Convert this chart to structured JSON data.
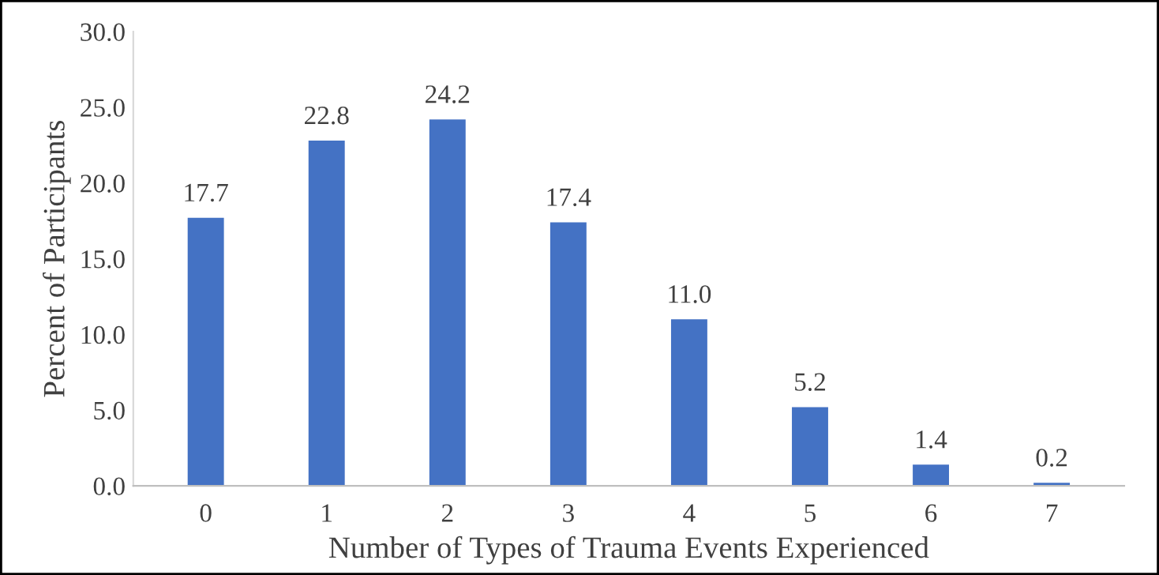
{
  "chart_data": {
    "type": "bar",
    "xlabel": "Number of Types of Trauma Events Experienced",
    "ylabel": "Percent of Participants",
    "categories": [
      "0",
      "1",
      "2",
      "3",
      "4",
      "5",
      "6",
      "7"
    ],
    "values": [
      17.7,
      22.8,
      24.2,
      17.4,
      11.0,
      5.2,
      1.4,
      0.2
    ],
    "value_labels": [
      "17.7",
      "22.8",
      "24.2",
      "17.4",
      "11.0",
      "5.2",
      "1.4",
      "0.2"
    ],
    "color": "#4472c4",
    "ylim": [
      0,
      30
    ],
    "yticks": [
      {
        "value": 0,
        "label": "0.0"
      },
      {
        "value": 5,
        "label": "5.0"
      },
      {
        "value": 10,
        "label": "10.0"
      },
      {
        "value": 15,
        "label": "15.0"
      },
      {
        "value": 20,
        "label": "20.0"
      },
      {
        "value": 25,
        "label": "25.0"
      },
      {
        "value": 30,
        "label": "30.0"
      }
    ],
    "grid": false
  }
}
